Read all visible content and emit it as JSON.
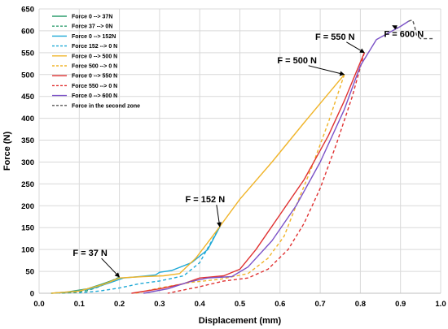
{
  "chart_data": {
    "type": "line",
    "xlabel": "Displacement (mm)",
    "ylabel": "Force (N)",
    "xlim": [
      0,
      1.0
    ],
    "ylim": [
      0,
      650
    ],
    "x_ticks": [
      "0.0",
      "0.1",
      "0.2",
      "0.3",
      "0.4",
      "0.5",
      "0.6",
      "0.7",
      "0.8",
      "0.9",
      "1.0"
    ],
    "y_ticks": [
      "0",
      "50",
      "100",
      "150",
      "200",
      "250",
      "300",
      "350",
      "400",
      "450",
      "500",
      "550",
      "600",
      "650"
    ],
    "grid": true,
    "legend_position": "top-left",
    "series": [
      {
        "name": "Force 0 --> 37N",
        "color": "#2e9e6e",
        "dash": false,
        "points": [
          [
            0.03,
            0
          ],
          [
            0.07,
            3
          ],
          [
            0.12,
            10
          ],
          [
            0.16,
            22
          ],
          [
            0.19,
            32
          ],
          [
            0.2,
            37
          ]
        ]
      },
      {
        "name": "Force 37 --> 0N",
        "color": "#2e9e6e",
        "dash": true,
        "points": [
          [
            0.2,
            37
          ],
          [
            0.18,
            28
          ],
          [
            0.15,
            15
          ],
          [
            0.12,
            6
          ],
          [
            0.09,
            2
          ],
          [
            0.05,
            0
          ]
        ]
      },
      {
        "name": "Force 0 --> 152N",
        "color": "#1fa9d6",
        "dash": false,
        "points": [
          [
            0.03,
            0
          ],
          [
            0.08,
            3
          ],
          [
            0.13,
            10
          ],
          [
            0.18,
            25
          ],
          [
            0.21,
            35
          ],
          [
            0.25,
            38
          ],
          [
            0.29,
            42
          ],
          [
            0.3,
            48
          ],
          [
            0.33,
            52
          ],
          [
            0.38,
            70
          ],
          [
            0.42,
            100
          ],
          [
            0.45,
            152
          ]
        ]
      },
      {
        "name": "Force 152 --> 0 N",
        "color": "#1fa9d6",
        "dash": true,
        "points": [
          [
            0.45,
            152
          ],
          [
            0.43,
            120
          ],
          [
            0.4,
            70
          ],
          [
            0.36,
            40
          ],
          [
            0.3,
            28
          ],
          [
            0.25,
            22
          ],
          [
            0.2,
            12
          ],
          [
            0.15,
            5
          ],
          [
            0.1,
            1
          ]
        ]
      },
      {
        "name": "Force 0 --> 500 N",
        "color": "#f0b429",
        "dash": false,
        "points": [
          [
            0.03,
            0
          ],
          [
            0.1,
            5
          ],
          [
            0.16,
            20
          ],
          [
            0.2,
            35
          ],
          [
            0.26,
            38
          ],
          [
            0.31,
            40
          ],
          [
            0.35,
            45
          ],
          [
            0.39,
            80
          ],
          [
            0.44,
            140
          ],
          [
            0.5,
            215
          ],
          [
            0.58,
            300
          ],
          [
            0.66,
            390
          ],
          [
            0.76,
            500
          ]
        ]
      },
      {
        "name": "Force 500 --> 0 N",
        "color": "#f0b429",
        "dash": true,
        "points": [
          [
            0.76,
            500
          ],
          [
            0.72,
            390
          ],
          [
            0.68,
            290
          ],
          [
            0.64,
            200
          ],
          [
            0.61,
            130
          ],
          [
            0.57,
            80
          ],
          [
            0.52,
            45
          ],
          [
            0.45,
            32
          ],
          [
            0.38,
            25
          ],
          [
            0.3,
            12
          ],
          [
            0.24,
            0
          ]
        ]
      },
      {
        "name": "Force 0 --> 550 N",
        "color": "#e03131",
        "dash": false,
        "points": [
          [
            0.23,
            0
          ],
          [
            0.3,
            10
          ],
          [
            0.36,
            22
          ],
          [
            0.4,
            35
          ],
          [
            0.46,
            40
          ],
          [
            0.5,
            55
          ],
          [
            0.54,
            100
          ],
          [
            0.6,
            180
          ],
          [
            0.66,
            260
          ],
          [
            0.72,
            360
          ],
          [
            0.76,
            440
          ],
          [
            0.81,
            550
          ]
        ]
      },
      {
        "name": "Force 550 --> 0 N",
        "color": "#e03131",
        "dash": true,
        "points": [
          [
            0.81,
            550
          ],
          [
            0.78,
            450
          ],
          [
            0.74,
            340
          ],
          [
            0.7,
            240
          ],
          [
            0.66,
            160
          ],
          [
            0.62,
            100
          ],
          [
            0.57,
            55
          ],
          [
            0.52,
            35
          ],
          [
            0.46,
            28
          ],
          [
            0.4,
            15
          ],
          [
            0.32,
            0
          ]
        ]
      },
      {
        "name": "Force 0 --> 600 N",
        "color": "#7b52c7",
        "dash": false,
        "points": [
          [
            0.26,
            0
          ],
          [
            0.32,
            10
          ],
          [
            0.37,
            25
          ],
          [
            0.42,
            35
          ],
          [
            0.48,
            38
          ],
          [
            0.52,
            60
          ],
          [
            0.58,
            120
          ],
          [
            0.64,
            200
          ],
          [
            0.7,
            300
          ],
          [
            0.76,
            420
          ],
          [
            0.8,
            520
          ],
          [
            0.84,
            580
          ],
          [
            0.88,
            600
          ],
          [
            0.9,
            610
          ],
          [
            0.92,
            622
          ]
        ]
      },
      {
        "name": "Force in the second zone",
        "color": "#555555",
        "dash": true,
        "points": [
          [
            0.92,
            622
          ],
          [
            0.93,
            625
          ],
          [
            0.935,
            610
          ],
          [
            0.94,
            590
          ],
          [
            0.95,
            582
          ],
          [
            0.98,
            582
          ]
        ]
      }
    ],
    "annotations": [
      {
        "text": "F = 37 N",
        "x": 0.2,
        "y": 37
      },
      {
        "text": "F = 152 N",
        "x": 0.45,
        "y": 152
      },
      {
        "text": "F = 500 N",
        "x": 0.76,
        "y": 500
      },
      {
        "text": "F = 550 N",
        "x": 0.81,
        "y": 550
      },
      {
        "text": "F = 600 N",
        "x": 0.88,
        "y": 612
      }
    ]
  }
}
